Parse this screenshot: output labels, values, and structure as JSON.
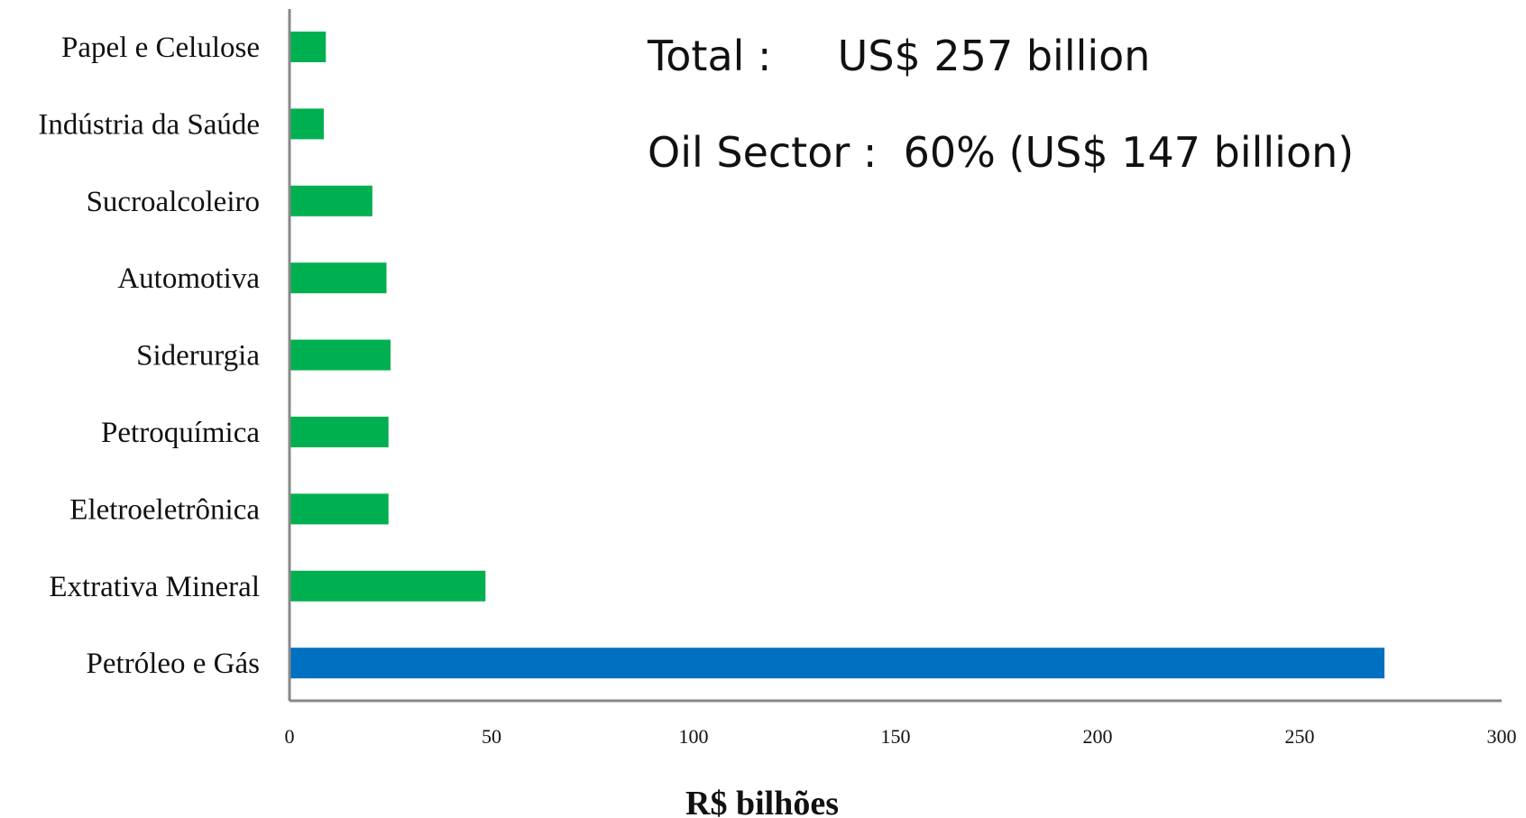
{
  "chart_data": {
    "type": "bar",
    "orientation": "horizontal",
    "categories": [
      "Papel e Celulose",
      "Indústria da Saúde",
      "Sucroalcoleiro",
      "Automotiva",
      "Siderurgia",
      "Petroquímica",
      "Eletroeletrônica",
      "Extrativa Mineral",
      "Petróleo e Gás"
    ],
    "values": [
      9,
      8.5,
      20.5,
      24,
      25,
      24.5,
      24.5,
      48.5,
      271
    ],
    "bar_colors": [
      "#00b050",
      "#00b050",
      "#00b050",
      "#00b050",
      "#00b050",
      "#00b050",
      "#00b050",
      "#00b050",
      "#0070c0"
    ],
    "xlabel": "R$ bilhões",
    "xlim": [
      0,
      300
    ],
    "xticks": [
      0,
      50,
      100,
      150,
      200,
      250,
      300
    ],
    "grid": false,
    "annotations": [
      "Total :     US$ 257 billion",
      "Oil Sector :  60% (US$ 147 billion)"
    ]
  }
}
